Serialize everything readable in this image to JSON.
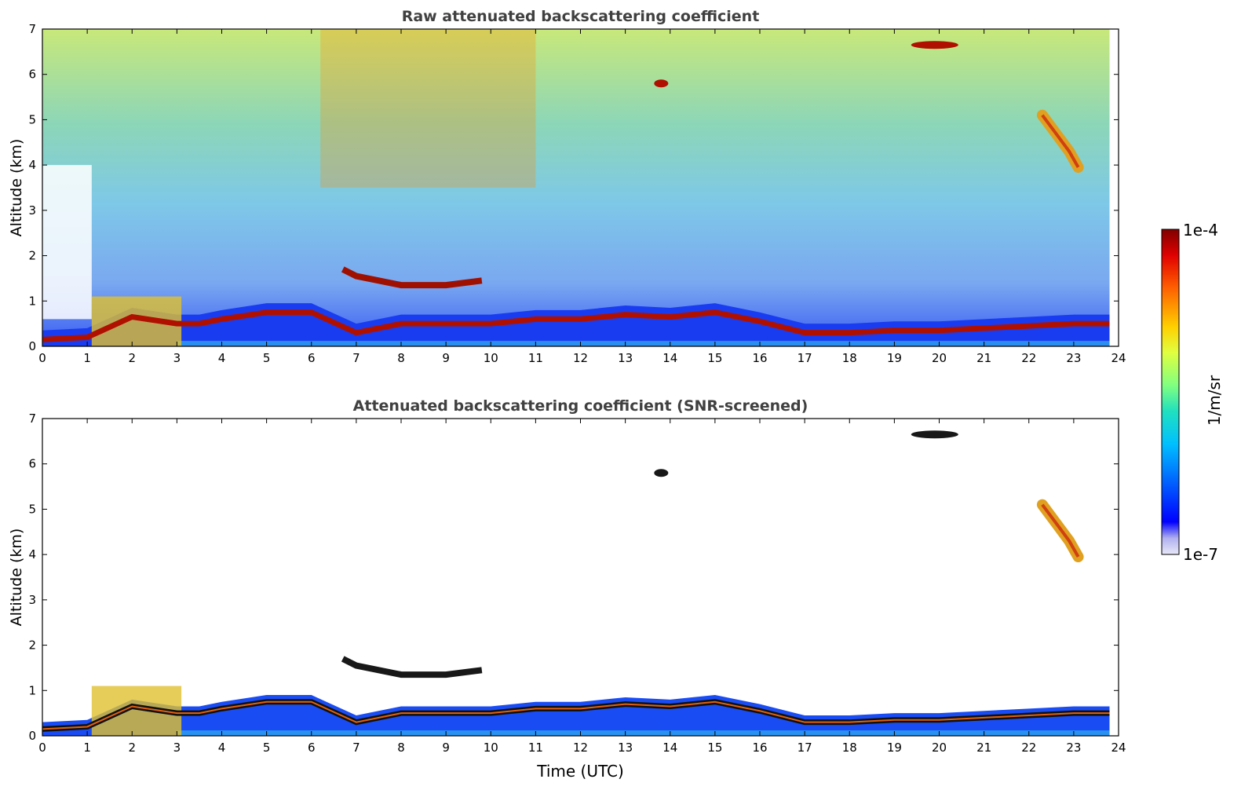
{
  "chart_data": [
    {
      "type": "heatmap",
      "title": "Raw attenuated backscattering coefficient",
      "xlabel": "",
      "ylabel": "Altitude (km)",
      "xlim": [
        0,
        24
      ],
      "ylim": [
        0,
        7
      ],
      "xticks": [
        "0",
        "1",
        "2",
        "3",
        "4",
        "5",
        "6",
        "7",
        "8",
        "9",
        "10",
        "11",
        "12",
        "13",
        "14",
        "15",
        "16",
        "17",
        "18",
        "19",
        "20",
        "21",
        "22",
        "23",
        "24"
      ],
      "yticks": [
        "0",
        "1",
        "2",
        "3",
        "4",
        "5",
        "6",
        "7"
      ],
      "features": [
        {
          "kind": "boundary_layer",
          "x": [
            0,
            1,
            2,
            3,
            3.5,
            4,
            5,
            6,
            7,
            8,
            9,
            10,
            11,
            12,
            13,
            14,
            15,
            16,
            17,
            18,
            19,
            20,
            21,
            22,
            23,
            23.8
          ],
          "y": [
            0.15,
            0.2,
            0.65,
            0.5,
            0.5,
            0.6,
            0.75,
            0.75,
            0.3,
            0.5,
            0.5,
            0.5,
            0.6,
            0.6,
            0.7,
            0.65,
            0.75,
            0.55,
            0.3,
            0.3,
            0.35,
            0.35,
            0.4,
            0.45,
            0.5,
            0.5
          ]
        },
        {
          "kind": "cloud_layer",
          "x": [
            6.7,
            7,
            8,
            9,
            9.8
          ],
          "y": [
            1.7,
            1.55,
            1.35,
            1.35,
            1.45
          ]
        },
        {
          "kind": "cloud_patch",
          "x": 13.8,
          "y": 5.8
        },
        {
          "kind": "cloud_patch",
          "x": 19.9,
          "y": 6.65
        },
        {
          "kind": "cirrus_fall",
          "x": [
            22.3,
            22.6,
            22.9,
            23.1
          ],
          "y": [
            5.1,
            4.7,
            4.3,
            3.95
          ]
        }
      ]
    },
    {
      "type": "heatmap",
      "title": "Attenuated backscattering coefficient (SNR-screened)",
      "xlabel": "Time (UTC)",
      "ylabel": "Altitude (km)",
      "xlim": [
        0,
        24
      ],
      "ylim": [
        0,
        7
      ],
      "xticks": [
        "0",
        "1",
        "2",
        "3",
        "4",
        "5",
        "6",
        "7",
        "8",
        "9",
        "10",
        "11",
        "12",
        "13",
        "14",
        "15",
        "16",
        "17",
        "18",
        "19",
        "20",
        "21",
        "22",
        "23",
        "24"
      ],
      "yticks": [
        "0",
        "1",
        "2",
        "3",
        "4",
        "5",
        "6",
        "7"
      ],
      "features": [
        {
          "kind": "boundary_layer",
          "x": [
            0,
            1,
            2,
            3,
            3.5,
            4,
            5,
            6,
            7,
            8,
            9,
            10,
            11,
            12,
            13,
            14,
            15,
            16,
            17,
            18,
            19,
            20,
            21,
            22,
            23,
            23.8
          ],
          "y": [
            0.15,
            0.2,
            0.65,
            0.5,
            0.5,
            0.6,
            0.75,
            0.75,
            0.3,
            0.5,
            0.5,
            0.5,
            0.6,
            0.6,
            0.7,
            0.65,
            0.75,
            0.55,
            0.3,
            0.3,
            0.35,
            0.35,
            0.4,
            0.45,
            0.5,
            0.5
          ]
        },
        {
          "kind": "cloud_layer",
          "x": [
            6.7,
            7,
            8,
            9,
            9.8
          ],
          "y": [
            1.7,
            1.55,
            1.35,
            1.35,
            1.45
          ]
        },
        {
          "kind": "cloud_patch",
          "x": 13.8,
          "y": 5.8
        },
        {
          "kind": "cloud_patch",
          "x": 19.9,
          "y": 6.65
        },
        {
          "kind": "cirrus_fall",
          "x": [
            22.3,
            22.6,
            22.9,
            23.1
          ],
          "y": [
            5.1,
            4.7,
            4.3,
            3.95
          ]
        }
      ]
    }
  ],
  "colorbar": {
    "label": "1/m/sr",
    "max_label": "1e-4",
    "min_label": "1e-7",
    "scale": "log",
    "range": [
      1e-07,
      0.0001
    ],
    "colormap": [
      "#e8e8f8",
      "#b0b0f0",
      "#0000ff",
      "#0060ff",
      "#00c0ff",
      "#20e0c0",
      "#80ff80",
      "#e0ff40",
      "#ffd000",
      "#ff6000",
      "#e00000",
      "#800000"
    ]
  }
}
